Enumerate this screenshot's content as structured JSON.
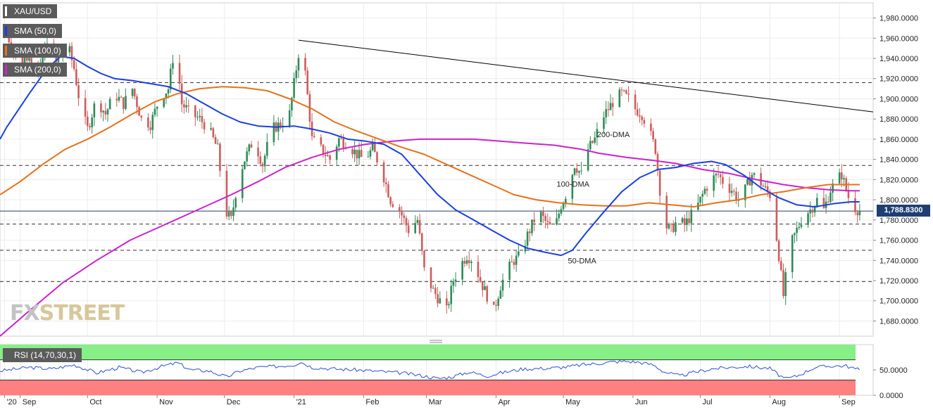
{
  "chart_data": {
    "type": "candlestick",
    "symbol": "XAU/USD",
    "colors": {
      "up": "#2e8b57",
      "down": "#cd5c5c",
      "sma50": "#1a3fe0",
      "sma100": "#e8701a",
      "sma200": "#cc22cc",
      "trendline": "#000000",
      "rsi": "#2a4fd6",
      "rsi_overbought": "#86ef86",
      "rsi_oversold": "#ff8080",
      "last_price_bg": "#1f3f73"
    },
    "legend": [
      {
        "label": "XAU/USD",
        "color": "#ffffff"
      },
      {
        "label": "SMA (50,0)",
        "color": "#1a3fe0"
      },
      {
        "label": "SMA (100,0)",
        "color": "#e8701a"
      },
      {
        "label": "SMA (200,0)",
        "color": "#cc22cc"
      }
    ],
    "x_ticks": [
      {
        "label": "'20",
        "day": -1
      },
      {
        "label": "Sep",
        "day": 6
      },
      {
        "label": "Oct",
        "day": 36
      },
      {
        "label": "Nov",
        "day": 67
      },
      {
        "label": "Dec",
        "day": 97
      },
      {
        "label": "'21",
        "day": 128
      },
      {
        "label": "Feb",
        "day": 159
      },
      {
        "label": "Mar",
        "day": 187
      },
      {
        "label": "Apr",
        "day": 218
      },
      {
        "label": "May",
        "day": 248
      },
      {
        "label": "Jun",
        "day": 279
      },
      {
        "label": "Jul",
        "day": 309
      },
      {
        "label": "Aug",
        "day": 340
      },
      {
        "label": "Sep",
        "day": 371
      }
    ],
    "x_range": [
      -3,
      386
    ],
    "ylim": [
      1665,
      1995
    ],
    "y_ticks": [
      "1,680.0000",
      "1,700.0000",
      "1,720.0000",
      "1,740.0000",
      "1,760.0000",
      "1,780.0000",
      "1,800.0000",
      "1,820.0000",
      "1,840.0000",
      "1,860.0000",
      "1,880.0000",
      "1,900.0000",
      "1,920.0000",
      "1,940.0000",
      "1,960.0000",
      "1,980.0000"
    ],
    "y_tick_values": [
      1680,
      1700,
      1720,
      1740,
      1760,
      1780,
      1800,
      1820,
      1840,
      1860,
      1880,
      1900,
      1920,
      1940,
      1960,
      1980
    ],
    "last_price": {
      "label": "1,788.8300",
      "value": 1788.83
    },
    "horizontal_levels": [
      1916,
      1834,
      1776,
      1750,
      1719
    ],
    "trendline": {
      "from": {
        "day": 130,
        "price": 1958
      },
      "to": {
        "day": 386,
        "price": 1887
      }
    },
    "annotations": [
      {
        "text": "200-DMA",
        "day": 263,
        "price": 1862
      },
      {
        "text": "100-DMA",
        "day": 245,
        "price": 1813
      },
      {
        "text": "50-DMA",
        "day": 250,
        "price": 1737
      }
    ],
    "price_anchors": [
      [
        0,
        1965
      ],
      [
        5,
        1935
      ],
      [
        10,
        1945
      ],
      [
        14,
        1920
      ],
      [
        18,
        1960
      ],
      [
        22,
        1935
      ],
      [
        27,
        1955
      ],
      [
        30,
        1930
      ],
      [
        33,
        1890
      ],
      [
        36,
        1870
      ],
      [
        40,
        1900
      ],
      [
        44,
        1885
      ],
      [
        48,
        1905
      ],
      [
        52,
        1895
      ],
      [
        56,
        1910
      ],
      [
        60,
        1880
      ],
      [
        64,
        1875
      ],
      [
        68,
        1900
      ],
      [
        72,
        1910
      ],
      [
        75,
        1955
      ],
      [
        78,
        1895
      ],
      [
        82,
        1885
      ],
      [
        86,
        1880
      ],
      [
        90,
        1870
      ],
      [
        94,
        1850
      ],
      [
        97,
        1790
      ],
      [
        100,
        1780
      ],
      [
        103,
        1820
      ],
      [
        106,
        1840
      ],
      [
        110,
        1860
      ],
      [
        114,
        1835
      ],
      [
        118,
        1870
      ],
      [
        122,
        1875
      ],
      [
        126,
        1885
      ],
      [
        130,
        1945
      ],
      [
        133,
        1925
      ],
      [
        136,
        1860
      ],
      [
        140,
        1850
      ],
      [
        144,
        1840
      ],
      [
        148,
        1860
      ],
      [
        152,
        1855
      ],
      [
        156,
        1845
      ],
      [
        159,
        1840
      ],
      [
        163,
        1850
      ],
      [
        167,
        1830
      ],
      [
        171,
        1800
      ],
      [
        175,
        1790
      ],
      [
        179,
        1770
      ],
      [
        183,
        1780
      ],
      [
        186,
        1730
      ],
      [
        190,
        1710
      ],
      [
        193,
        1700
      ],
      [
        196,
        1690
      ],
      [
        199,
        1720
      ],
      [
        202,
        1735
      ],
      [
        205,
        1745
      ],
      [
        208,
        1740
      ],
      [
        211,
        1720
      ],
      [
        214,
        1705
      ],
      [
        217,
        1690
      ],
      [
        220,
        1715
      ],
      [
        223,
        1730
      ],
      [
        226,
        1740
      ],
      [
        229,
        1745
      ],
      [
        232,
        1765
      ],
      [
        235,
        1780
      ],
      [
        238,
        1785
      ],
      [
        241,
        1775
      ],
      [
        244,
        1770
      ],
      [
        247,
        1795
      ],
      [
        250,
        1810
      ],
      [
        253,
        1835
      ],
      [
        256,
        1825
      ],
      [
        259,
        1850
      ],
      [
        262,
        1860
      ],
      [
        265,
        1880
      ],
      [
        268,
        1890
      ],
      [
        271,
        1900
      ],
      [
        274,
        1905
      ],
      [
        277,
        1900
      ],
      [
        280,
        1890
      ],
      [
        283,
        1885
      ],
      [
        286,
        1870
      ],
      [
        289,
        1850
      ],
      [
        291,
        1810
      ],
      [
        293,
        1775
      ],
      [
        296,
        1770
      ],
      [
        299,
        1780
      ],
      [
        302,
        1775
      ],
      [
        305,
        1785
      ],
      [
        308,
        1795
      ],
      [
        311,
        1810
      ],
      [
        314,
        1820
      ],
      [
        317,
        1825
      ],
      [
        320,
        1815
      ],
      [
        323,
        1810
      ],
      [
        326,
        1800
      ],
      [
        329,
        1810
      ],
      [
        332,
        1825
      ],
      [
        335,
        1820
      ],
      [
        338,
        1810
      ],
      [
        340,
        1805
      ],
      [
        342,
        1780
      ],
      [
        344,
        1745
      ],
      [
        346,
        1705
      ],
      [
        348,
        1740
      ],
      [
        350,
        1760
      ],
      [
        352,
        1770
      ],
      [
        355,
        1785
      ],
      [
        358,
        1790
      ],
      [
        361,
        1800
      ],
      [
        364,
        1790
      ],
      [
        367,
        1810
      ],
      [
        370,
        1820
      ],
      [
        372,
        1825
      ],
      [
        374,
        1810
      ],
      [
        376,
        1795
      ],
      [
        378,
        1792
      ],
      [
        380,
        1789
      ]
    ],
    "sma50": [
      [
        -3,
        1860
      ],
      [
        0,
        1872
      ],
      [
        10,
        1905
      ],
      [
        18,
        1930
      ],
      [
        24,
        1942
      ],
      [
        30,
        1940
      ],
      [
        36,
        1932
      ],
      [
        42,
        1925
      ],
      [
        48,
        1920
      ],
      [
        56,
        1918
      ],
      [
        64,
        1915
      ],
      [
        72,
        1912
      ],
      [
        80,
        1905
      ],
      [
        88,
        1895
      ],
      [
        96,
        1885
      ],
      [
        104,
        1877
      ],
      [
        112,
        1873
      ],
      [
        120,
        1872
      ],
      [
        128,
        1873
      ],
      [
        136,
        1870
      ],
      [
        144,
        1866
      ],
      [
        152,
        1860
      ],
      [
        160,
        1858
      ],
      [
        168,
        1855
      ],
      [
        176,
        1845
      ],
      [
        184,
        1825
      ],
      [
        192,
        1805
      ],
      [
        200,
        1790
      ],
      [
        208,
        1780
      ],
      [
        216,
        1770
      ],
      [
        224,
        1760
      ],
      [
        232,
        1752
      ],
      [
        240,
        1748
      ],
      [
        247,
        1745
      ],
      [
        252,
        1750
      ],
      [
        258,
        1767
      ],
      [
        266,
        1788
      ],
      [
        274,
        1808
      ],
      [
        282,
        1822
      ],
      [
        290,
        1830
      ],
      [
        298,
        1832
      ],
      [
        306,
        1836
      ],
      [
        314,
        1838
      ],
      [
        320,
        1835
      ],
      [
        328,
        1825
      ],
      [
        336,
        1812
      ],
      [
        344,
        1802
      ],
      [
        352,
        1795
      ],
      [
        360,
        1793
      ],
      [
        368,
        1796
      ],
      [
        376,
        1798
      ],
      [
        380,
        1798
      ]
    ],
    "sma100": [
      [
        -3,
        1805
      ],
      [
        6,
        1818
      ],
      [
        16,
        1835
      ],
      [
        26,
        1850
      ],
      [
        36,
        1860
      ],
      [
        46,
        1872
      ],
      [
        56,
        1885
      ],
      [
        66,
        1897
      ],
      [
        76,
        1905
      ],
      [
        86,
        1910
      ],
      [
        96,
        1912
      ],
      [
        106,
        1911
      ],
      [
        116,
        1908
      ],
      [
        126,
        1900
      ],
      [
        136,
        1890
      ],
      [
        146,
        1877
      ],
      [
        156,
        1868
      ],
      [
        166,
        1860
      ],
      [
        176,
        1852
      ],
      [
        186,
        1845
      ],
      [
        196,
        1835
      ],
      [
        206,
        1825
      ],
      [
        216,
        1815
      ],
      [
        226,
        1805
      ],
      [
        236,
        1800
      ],
      [
        246,
        1797
      ],
      [
        256,
        1795
      ],
      [
        266,
        1794
      ],
      [
        276,
        1794
      ],
      [
        286,
        1797
      ],
      [
        296,
        1795
      ],
      [
        306,
        1793
      ],
      [
        316,
        1797
      ],
      [
        326,
        1800
      ],
      [
        336,
        1805
      ],
      [
        346,
        1808
      ],
      [
        356,
        1812
      ],
      [
        366,
        1815
      ],
      [
        376,
        1815
      ],
      [
        380,
        1815
      ]
    ],
    "sma200": [
      [
        -3,
        1665
      ],
      [
        10,
        1690
      ],
      [
        25,
        1718
      ],
      [
        40,
        1740
      ],
      [
        55,
        1760
      ],
      [
        70,
        1775
      ],
      [
        85,
        1790
      ],
      [
        100,
        1805
      ],
      [
        112,
        1818
      ],
      [
        124,
        1832
      ],
      [
        136,
        1842
      ],
      [
        148,
        1850
      ],
      [
        160,
        1855
      ],
      [
        172,
        1858
      ],
      [
        184,
        1860
      ],
      [
        196,
        1860
      ],
      [
        208,
        1860
      ],
      [
        220,
        1858
      ],
      [
        232,
        1856
      ],
      [
        244,
        1854
      ],
      [
        256,
        1850
      ],
      [
        264,
        1846
      ],
      [
        276,
        1842
      ],
      [
        288,
        1839
      ],
      [
        298,
        1836
      ],
      [
        310,
        1830
      ],
      [
        322,
        1826
      ],
      [
        334,
        1820
      ],
      [
        346,
        1815
      ],
      [
        356,
        1812
      ],
      [
        366,
        1810
      ],
      [
        376,
        1809
      ],
      [
        380,
        1809
      ]
    ],
    "rsi": {
      "label": "RSI (14,70,30,1)",
      "ylim": [
        0,
        100
      ],
      "y_ticks": [
        "50.0000",
        "0.0000"
      ],
      "y_tick_values": [
        50,
        0
      ],
      "overbought": 70,
      "oversold": 30,
      "values": [
        [
          -3,
          48
        ],
        [
          10,
          55
        ],
        [
          20,
          52
        ],
        [
          30,
          60
        ],
        [
          40,
          44
        ],
        [
          50,
          55
        ],
        [
          60,
          45
        ],
        [
          70,
          58
        ],
        [
          76,
          64
        ],
        [
          82,
          50
        ],
        [
          90,
          48
        ],
        [
          98,
          36
        ],
        [
          104,
          48
        ],
        [
          112,
          55
        ],
        [
          120,
          57
        ],
        [
          128,
          60
        ],
        [
          131,
          66
        ],
        [
          136,
          55
        ],
        [
          146,
          52
        ],
        [
          156,
          50
        ],
        [
          166,
          47
        ],
        [
          176,
          44
        ],
        [
          186,
          38
        ],
        [
          192,
          33
        ],
        [
          198,
          36
        ],
        [
          206,
          46
        ],
        [
          214,
          38
        ],
        [
          220,
          44
        ],
        [
          230,
          52
        ],
        [
          240,
          53
        ],
        [
          250,
          56
        ],
        [
          256,
          60
        ],
        [
          264,
          63
        ],
        [
          270,
          66
        ],
        [
          276,
          67
        ],
        [
          282,
          65
        ],
        [
          288,
          60
        ],
        [
          293,
          46
        ],
        [
          300,
          38
        ],
        [
          306,
          45
        ],
        [
          314,
          52
        ],
        [
          322,
          55
        ],
        [
          330,
          57
        ],
        [
          340,
          53
        ],
        [
          344,
          40
        ],
        [
          347,
          32
        ],
        [
          352,
          38
        ],
        [
          360,
          55
        ],
        [
          368,
          58
        ],
        [
          374,
          58
        ],
        [
          378,
          52
        ],
        [
          380,
          50
        ]
      ]
    }
  }
}
